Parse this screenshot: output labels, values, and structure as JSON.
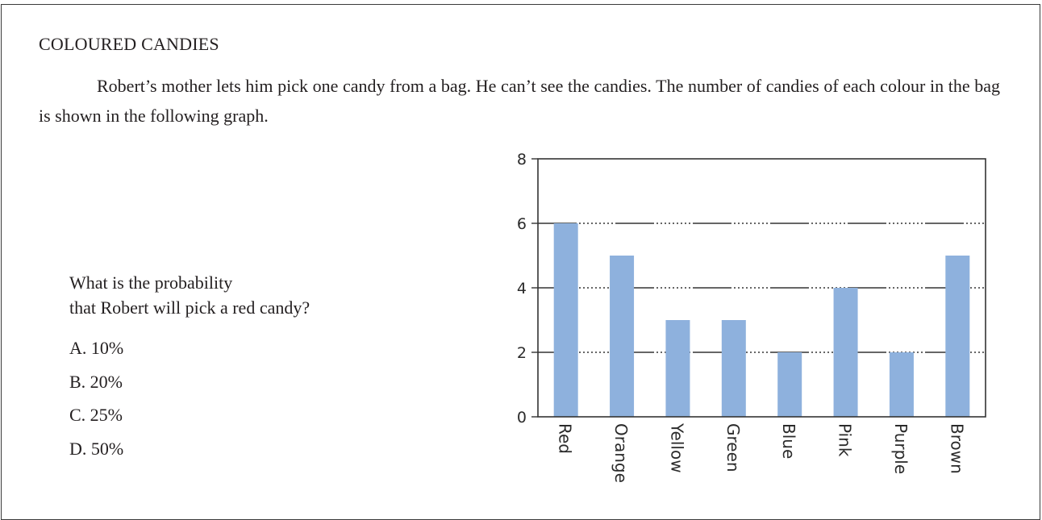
{
  "document": {
    "heading": "COLOURED CANDIES",
    "intro": "Robert’s mother lets him pick one candy from a bag. He can’t see the candies. The number of candies of each colour in the bag is shown in the following graph.",
    "question_line1": "What is the probability",
    "question_line2": "that Robert will pick a red candy?",
    "options": [
      "A. 10%",
      "B. 20%",
      "C. 25%",
      "D. 50%"
    ]
  },
  "chart_data": {
    "type": "bar",
    "categories": [
      "Red",
      "Orange",
      "Yellow",
      "Green",
      "Blue",
      "Pink",
      "Purple",
      "Brown"
    ],
    "values": [
      6,
      5,
      3,
      3,
      2,
      4,
      2,
      5
    ],
    "title": "",
    "xlabel": "",
    "ylabel": "",
    "ylim": [
      0,
      8
    ],
    "yticks": [
      "0",
      "2",
      "4",
      "6",
      "8"
    ],
    "grid": true,
    "bar_color": "#8eb1dd"
  }
}
